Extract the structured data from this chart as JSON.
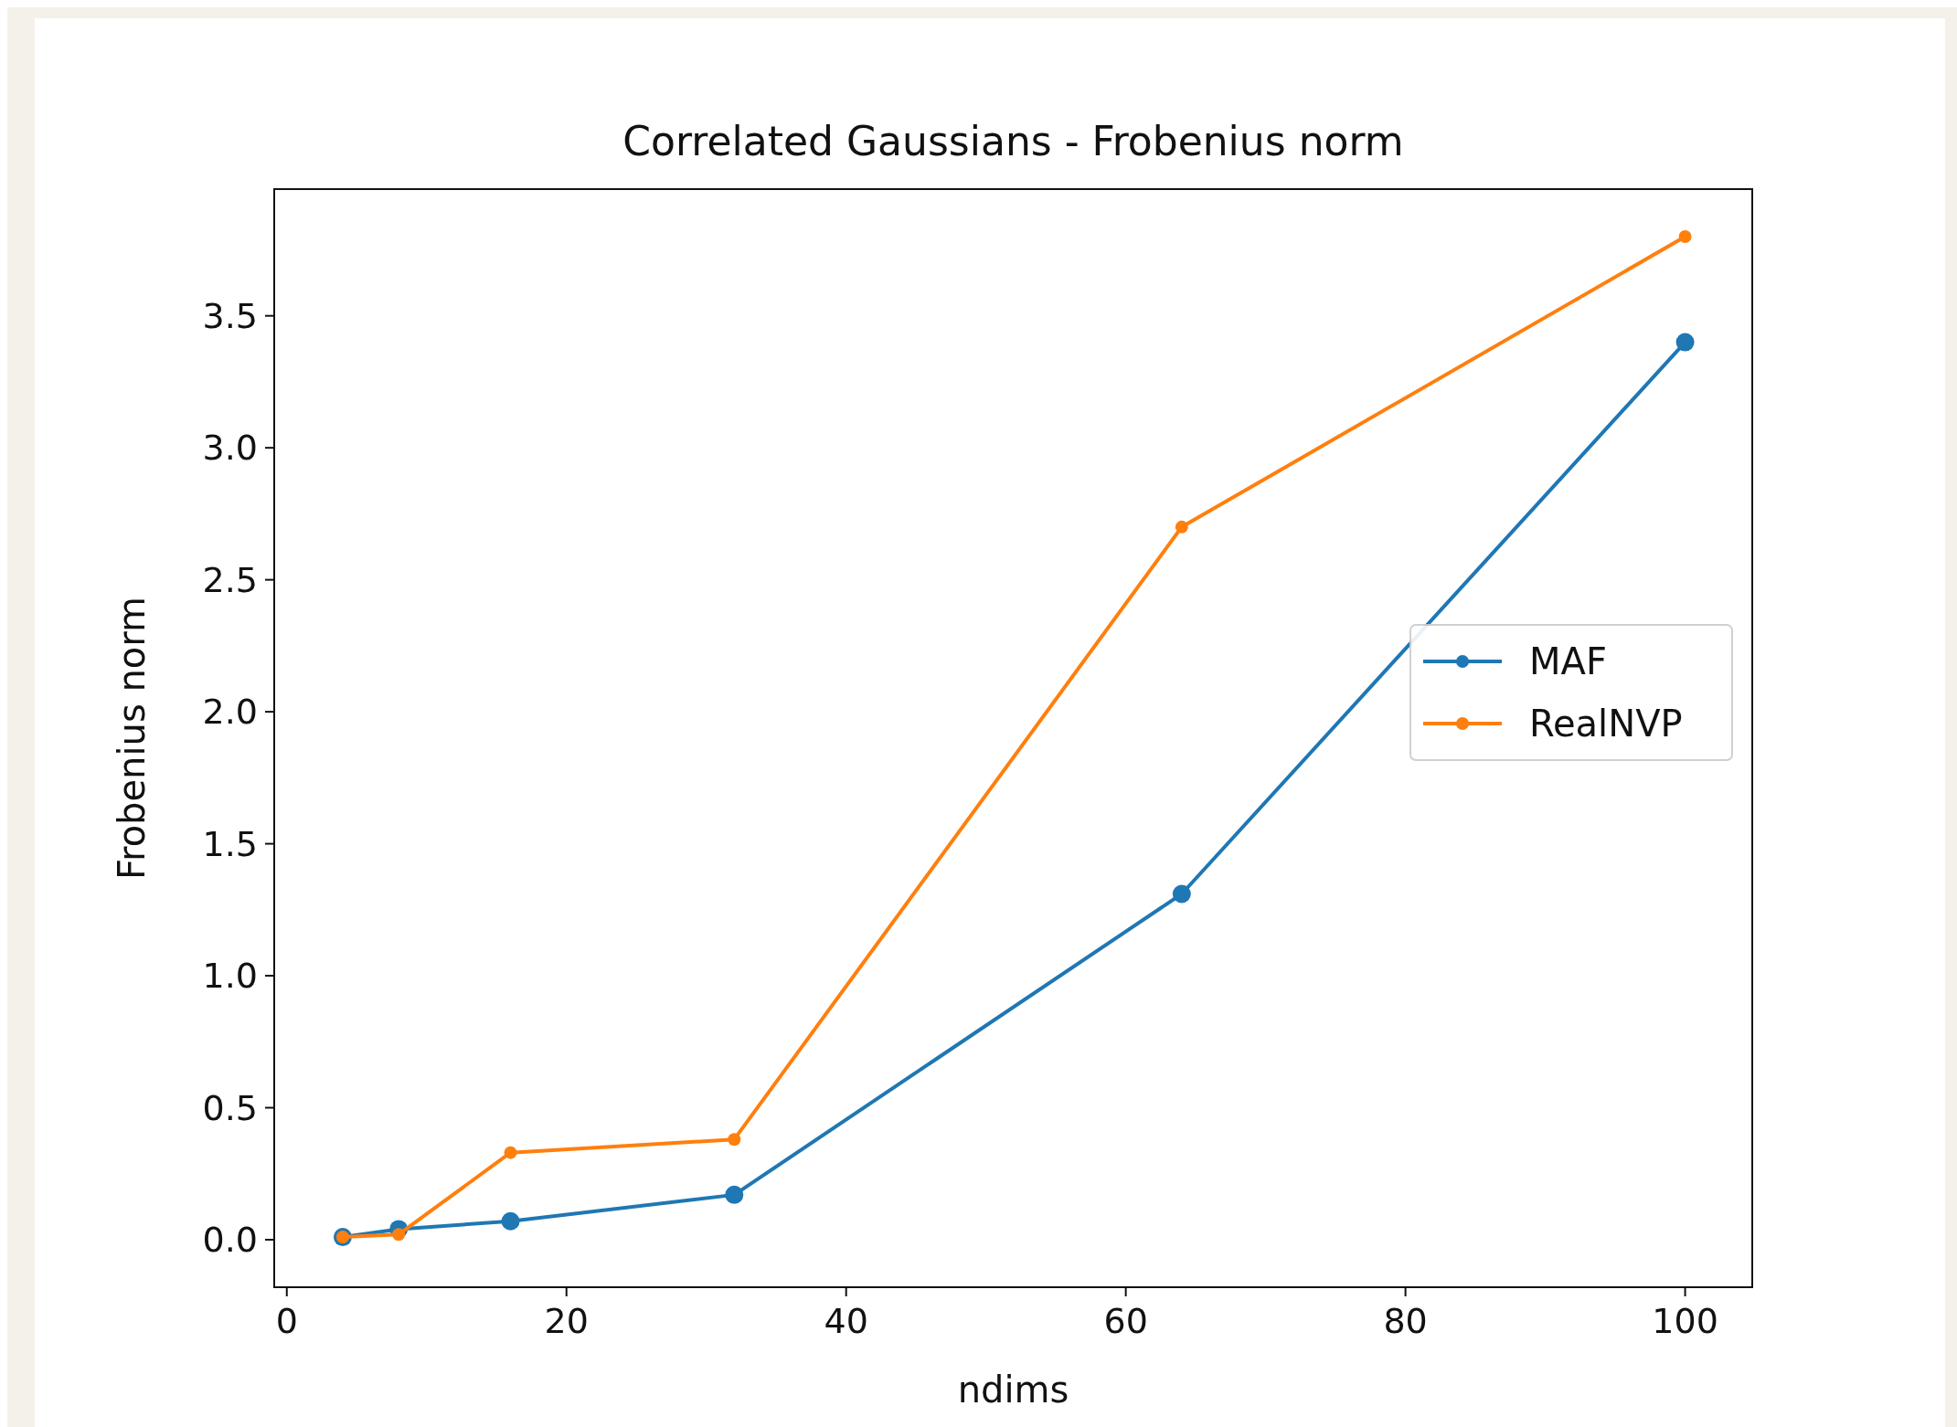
{
  "chart_data": {
    "type": "line",
    "title": "Correlated Gaussians - Frobenius norm",
    "xlabel": "ndims",
    "ylabel": "Frobenius norm",
    "x": [
      4,
      8,
      16,
      32,
      64,
      100
    ],
    "series": [
      {
        "name": "MAF",
        "color": "#1f77b4",
        "values": [
          0.01,
          0.04,
          0.07,
          0.17,
          1.31,
          3.4
        ]
      },
      {
        "name": "RealNVP",
        "color": "#ff7f0e",
        "values": [
          0.01,
          0.02,
          0.33,
          0.38,
          2.7,
          3.8
        ]
      }
    ],
    "xlim": [
      -0.9,
      104.8
    ],
    "ylim": [
      -0.18,
      3.98
    ],
    "xticks": [
      0,
      20,
      40,
      60,
      80,
      100
    ],
    "yticks": [
      {
        "value": 0,
        "label": "0.0"
      },
      {
        "value": 0.5,
        "label": "0.5"
      },
      {
        "value": 1,
        "label": "1.0"
      },
      {
        "value": 1.5,
        "label": "1.5"
      },
      {
        "value": 2,
        "label": "2.0"
      },
      {
        "value": 2.5,
        "label": "2.5"
      },
      {
        "value": 3,
        "label": "3.0"
      },
      {
        "value": 3.5,
        "label": "3.5"
      }
    ],
    "legend": "center right",
    "marker": "circle",
    "line_style": "solid"
  }
}
